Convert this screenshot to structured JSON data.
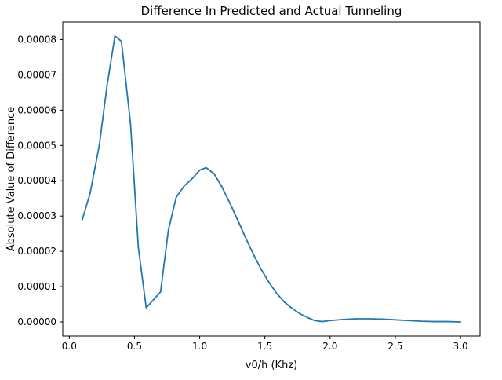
{
  "chart_data": {
    "type": "line",
    "title": "Difference In Predicted and Actual Tunneling",
    "xlabel": "v0/h (Khz)",
    "ylabel": "Absolute Value of Difference",
    "xlim": [
      -0.05,
      3.15
    ],
    "ylim": [
      -4e-06,
      8.5e-05
    ],
    "x_ticks": [
      0.0,
      0.5,
      1.0,
      1.5,
      2.0,
      2.5,
      3.0
    ],
    "x_tick_labels": [
      "0.0",
      "0.5",
      "1.0",
      "1.5",
      "2.0",
      "2.5",
      "3.0"
    ],
    "y_ticks": [
      0,
      1e-05,
      2e-05,
      3e-05,
      4e-05,
      5e-05,
      6e-05,
      7e-05,
      8e-05
    ],
    "y_tick_labels": [
      "0.00000",
      "0.00001",
      "0.00002",
      "0.00003",
      "0.00004",
      "0.00005",
      "0.00006",
      "0.00007",
      "0.00008"
    ],
    "grid": false,
    "series": [
      {
        "color": "#1f77b4",
        "x": [
          0.1,
          0.16,
          0.23,
          0.29,
          0.35,
          0.4,
          0.47,
          0.53,
          0.59,
          0.7,
          0.76,
          0.82,
          0.88,
          0.94,
          1.0,
          1.05,
          1.11,
          1.17,
          1.23,
          1.29,
          1.35,
          1.41,
          1.47,
          1.53,
          1.59,
          1.65,
          1.71,
          1.77,
          1.83,
          1.88,
          1.94,
          2.0,
          2.1,
          2.2,
          2.3,
          2.4,
          2.5,
          2.6,
          2.7,
          2.8,
          2.9,
          3.0
        ],
        "y": [
          2.9e-05,
          3.65e-05,
          5e-05,
          6.7e-05,
          8.1e-05,
          7.95e-05,
          5.6e-05,
          2.1e-05,
          4e-06,
          8.5e-06,
          2.6e-05,
          3.53e-05,
          3.85e-05,
          4.05e-05,
          4.3e-05,
          4.37e-05,
          4.2e-05,
          3.83e-05,
          3.38e-05,
          2.9e-05,
          2.4e-05,
          1.93e-05,
          1.5e-05,
          1.13e-05,
          8.1e-06,
          5.6e-06,
          3.8e-06,
          2.3e-06,
          1.2e-06,
          4e-07,
          1e-07,
          4e-07,
          7e-07,
          9e-07,
          9e-07,
          8e-07,
          6e-07,
          4e-07,
          2e-07,
          1e-07,
          1e-07,
          0.0
        ]
      }
    ]
  }
}
